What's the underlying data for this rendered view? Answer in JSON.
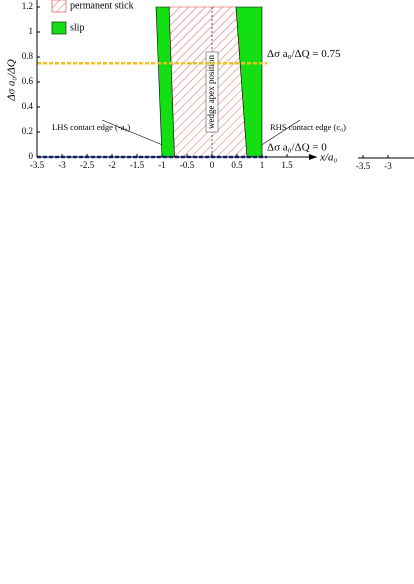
{
  "chart_data": [
    {
      "type": "region",
      "xlabel": "x/a₀",
      "ylabel": "Δσ a₀/ΔQ",
      "xlim": [
        -3.5,
        2.1
      ],
      "ylim": [
        0,
        1.2
      ],
      "xticks": [
        -3.5,
        -3,
        -2.5,
        -2,
        -1.5,
        -1,
        -0.5,
        0,
        0.5,
        1,
        1.5
      ],
      "yticks": [
        0,
        0.2,
        0.4,
        0.6,
        0.8,
        1,
        1.2
      ],
      "regions": [
        {
          "name": "permanent stick",
          "color": "#e0393e",
          "pattern": "hatch",
          "polygons": [
            {
              "x": [
                -0.75,
                0.7,
                0.48,
                -0.86
              ],
              "y": [
                0,
                0,
                1.2,
                1.2
              ]
            }
          ]
        },
        {
          "name": "slip",
          "color": "#12e012",
          "pattern": "solid",
          "polygons": [
            {
              "x": [
                -1,
                -0.75,
                -0.86,
                -1.12
              ],
              "y": [
                0,
                0,
                1.2,
                1.2
              ]
            },
            {
              "x": [
                0.7,
                1,
                1,
                0.48
              ],
              "y": [
                0,
                0,
                1.2,
                1.2
              ]
            }
          ]
        }
      ],
      "hlines": [
        {
          "value": 0.75,
          "color": "#f0c020",
          "label": "Δσ a₀/ΔQ = 0.75"
        },
        {
          "value": 0,
          "color": "#1f3fbf",
          "label": "Δσ a₀/ΔQ = 0"
        }
      ],
      "vline": {
        "value": 0,
        "label": "wedge apex position"
      },
      "annotations": [
        {
          "text": "LHS contact edge (-a₀)",
          "x": -1,
          "y": 0.45
        },
        {
          "text": "RHS contact edge (c₀)",
          "x": 1,
          "y": 0.45
        }
      ]
    },
    {
      "type": "axis",
      "xlim": [
        -3.6,
        -2.4
      ],
      "xticks": [
        -3.5,
        -3
      ]
    }
  ]
}
